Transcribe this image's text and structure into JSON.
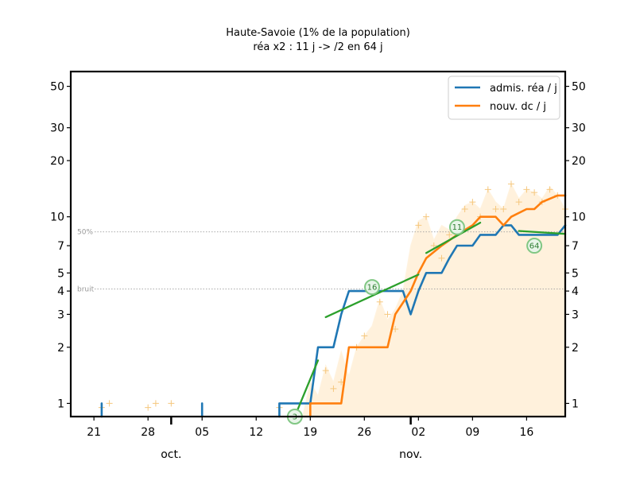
{
  "chart_data": {
    "type": "line",
    "title": "Haute-Savoie (1% de la population)",
    "subtitle": "réa x2 : 11 j -> /2 en 64 j",
    "yscale": "log",
    "ylim": [
      0.85,
      60
    ],
    "xlim": [
      "2020-09-18",
      "2020-11-21"
    ],
    "y_ticks": [
      {
        "v": 1,
        "label": "1"
      },
      {
        "v": 2,
        "label": "2"
      },
      {
        "v": 3,
        "label": "3"
      },
      {
        "v": 4,
        "label": "4"
      },
      {
        "v": 5,
        "label": "5"
      },
      {
        "v": 7,
        "label": "7"
      },
      {
        "v": 10,
        "label": "10"
      },
      {
        "v": 20,
        "label": "20"
      },
      {
        "v": 30,
        "label": "30"
      },
      {
        "v": 50,
        "label": "50"
      }
    ],
    "x_ticks": [
      {
        "date": "2020-09-21",
        "label": "21"
      },
      {
        "date": "2020-09-28",
        "label": "28"
      },
      {
        "date": "2020-10-05",
        "label": "05"
      },
      {
        "date": "2020-10-12",
        "label": "12"
      },
      {
        "date": "2020-10-19",
        "label": "19"
      },
      {
        "date": "2020-10-26",
        "label": "26"
      },
      {
        "date": "2020-11-02",
        "label": "02"
      },
      {
        "date": "2020-11-09",
        "label": "09"
      },
      {
        "date": "2020-11-16",
        "label": "16"
      }
    ],
    "month_labels": [
      {
        "date": "2020-10-01",
        "label": "oct."
      },
      {
        "date": "2020-11-01",
        "label": "nov."
      }
    ],
    "reference_lines": [
      {
        "value": 8.3,
        "label": "50%"
      },
      {
        "value": 4.1,
        "label": "bruit"
      }
    ],
    "legend": {
      "position": "top-right"
    },
    "series": [
      {
        "name": "admis. réa / j",
        "color": "#1f77b4",
        "segments": [
          [
            [
              "2020-09-22",
              0.85
            ],
            [
              "2020-09-22",
              1.0
            ]
          ],
          [
            [
              "2020-10-05",
              0.85
            ],
            [
              "2020-10-05",
              1.0
            ]
          ],
          [
            [
              "2020-10-15",
              0.85
            ],
            [
              "2020-10-15",
              1.0
            ],
            [
              "2020-10-18",
              1.0
            ],
            [
              "2020-10-19",
              1.0
            ],
            [
              "2020-10-20",
              2.0
            ],
            [
              "2020-10-22",
              2.0
            ],
            [
              "2020-10-23",
              3.0
            ],
            [
              "2020-10-24",
              4.0
            ],
            [
              "2020-10-28",
              4.0
            ],
            [
              "2020-10-29",
              4.0
            ],
            [
              "2020-10-31",
              4.0
            ],
            [
              "2020-11-01",
              3.0
            ],
            [
              "2020-11-02",
              4.0
            ],
            [
              "2020-11-03",
              5.0
            ],
            [
              "2020-11-05",
              5.0
            ],
            [
              "2020-11-06",
              6.0
            ],
            [
              "2020-11-07",
              7.0
            ],
            [
              "2020-11-09",
              7.0
            ],
            [
              "2020-11-10",
              8.0
            ],
            [
              "2020-11-12",
              8.0
            ],
            [
              "2020-11-13",
              9.0
            ],
            [
              "2020-11-14",
              9.0
            ],
            [
              "2020-11-15",
              8.0
            ],
            [
              "2020-11-17",
              8.0
            ],
            [
              "2020-11-19",
              8.0
            ],
            [
              "2020-11-20",
              8.0
            ],
            [
              "2020-11-21",
              9.0
            ]
          ]
        ]
      },
      {
        "name": "nouv. dc / j",
        "color": "#ff7f0e",
        "segments": [
          [
            [
              "2020-10-19",
              0.85
            ],
            [
              "2020-10-19",
              1.0
            ],
            [
              "2020-10-23",
              1.0
            ],
            [
              "2020-10-24",
              2.0
            ],
            [
              "2020-10-29",
              2.0
            ],
            [
              "2020-10-30",
              3.0
            ],
            [
              "2020-11-01",
              4.0
            ],
            [
              "2020-11-02",
              5.0
            ],
            [
              "2020-11-03",
              6.0
            ],
            [
              "2020-11-05",
              7.0
            ],
            [
              "2020-11-07",
              8.0
            ],
            [
              "2020-11-09",
              9.0
            ],
            [
              "2020-11-10",
              10.0
            ],
            [
              "2020-11-12",
              10.0
            ],
            [
              "2020-11-13",
              9.0
            ],
            [
              "2020-11-14",
              10.0
            ],
            [
              "2020-11-16",
              11.0
            ],
            [
              "2020-11-17",
              11.0
            ],
            [
              "2020-11-18",
              12.0
            ],
            [
              "2020-11-20",
              13.0
            ],
            [
              "2020-11-21",
              13.0
            ]
          ]
        ]
      }
    ],
    "trends": [
      {
        "color": "#2ca02c",
        "label": "3",
        "label_at": [
          "2020-10-17",
          0.85
        ],
        "points": [
          [
            "2020-10-17",
            0.85
          ],
          [
            "2020-10-20",
            1.7
          ]
        ]
      },
      {
        "color": "#2ca02c",
        "label": "16",
        "label_at": [
          "2020-10-27",
          4.2
        ],
        "points": [
          [
            "2020-10-21",
            2.9
          ],
          [
            "2020-11-02",
            4.9
          ]
        ]
      },
      {
        "color": "#2ca02c",
        "label": "11",
        "label_at": [
          "2020-11-07",
          8.8
        ],
        "points": [
          [
            "2020-11-03",
            6.4
          ],
          [
            "2020-11-10",
            9.3
          ]
        ]
      },
      {
        "color": "#2ca02c",
        "label": "64",
        "label_at": [
          "2020-11-17",
          7.0
        ],
        "points": [
          [
            "2020-11-15",
            8.4
          ],
          [
            "2020-11-21",
            8.1
          ]
        ]
      }
    ],
    "raw_points": [
      [
        "2020-09-22",
        0.95
      ],
      [
        "2020-09-23",
        1.0
      ],
      [
        "2020-09-28",
        0.95
      ],
      [
        "2020-09-29",
        1.0
      ],
      [
        "2020-10-01",
        1.0
      ],
      [
        "2020-10-15",
        0.95
      ],
      [
        "2020-10-21",
        1.5
      ],
      [
        "2020-10-22",
        1.2
      ],
      [
        "2020-10-23",
        1.3
      ],
      [
        "2020-10-25",
        2.0
      ],
      [
        "2020-10-26",
        2.3
      ],
      [
        "2020-10-28",
        3.5
      ],
      [
        "2020-10-29",
        3.0
      ],
      [
        "2020-10-30",
        2.5
      ],
      [
        "2020-11-02",
        9.0
      ],
      [
        "2020-11-03",
        10.0
      ],
      [
        "2020-11-04",
        7.0
      ],
      [
        "2020-11-05",
        6.0
      ],
      [
        "2020-11-06",
        8.0
      ],
      [
        "2020-11-07",
        8.5
      ],
      [
        "2020-11-08",
        11.0
      ],
      [
        "2020-11-09",
        12.0
      ],
      [
        "2020-11-10",
        10.0
      ],
      [
        "2020-11-11",
        14.0
      ],
      [
        "2020-11-12",
        11.0
      ],
      [
        "2020-11-13",
        11.0
      ],
      [
        "2020-11-14",
        15.0
      ],
      [
        "2020-11-15",
        12.0
      ],
      [
        "2020-11-16",
        14.0
      ],
      [
        "2020-11-17",
        13.5
      ],
      [
        "2020-11-18",
        12.0
      ],
      [
        "2020-11-19",
        14.0
      ],
      [
        "2020-11-20",
        13.0
      ],
      [
        "2020-11-21",
        11.0
      ]
    ],
    "band_upper": [
      [
        "2020-10-18",
        0.85
      ],
      [
        "2020-10-19",
        1.3
      ],
      [
        "2020-10-20",
        1.1
      ],
      [
        "2020-10-21",
        1.6
      ],
      [
        "2020-10-22",
        1.3
      ],
      [
        "2020-10-23",
        1.9
      ],
      [
        "2020-10-24",
        1.4
      ],
      [
        "2020-10-25",
        2.0
      ],
      [
        "2020-10-26",
        2.3
      ],
      [
        "2020-10-27",
        2.6
      ],
      [
        "2020-10-28",
        3.6
      ],
      [
        "2020-10-29",
        2.8
      ],
      [
        "2020-10-30",
        3.2
      ],
      [
        "2020-10-31",
        4.0
      ],
      [
        "2020-11-01",
        7.0
      ],
      [
        "2020-11-02",
        9.5
      ],
      [
        "2020-11-03",
        10.0
      ],
      [
        "2020-11-04",
        7.5
      ],
      [
        "2020-11-05",
        9.0
      ],
      [
        "2020-11-06",
        8.5
      ],
      [
        "2020-11-07",
        10.0
      ],
      [
        "2020-11-08",
        11.5
      ],
      [
        "2020-11-09",
        12.0
      ],
      [
        "2020-11-10",
        11.0
      ],
      [
        "2020-11-11",
        14.0
      ],
      [
        "2020-11-12",
        12.0
      ],
      [
        "2020-11-13",
        11.0
      ],
      [
        "2020-11-14",
        15.0
      ],
      [
        "2020-11-15",
        12.5
      ],
      [
        "2020-11-16",
        14.0
      ],
      [
        "2020-11-17",
        13.5
      ],
      [
        "2020-11-18",
        12.5
      ],
      [
        "2020-11-19",
        14.5
      ],
      [
        "2020-11-20",
        13.0
      ],
      [
        "2020-11-21",
        11.0
      ]
    ]
  }
}
